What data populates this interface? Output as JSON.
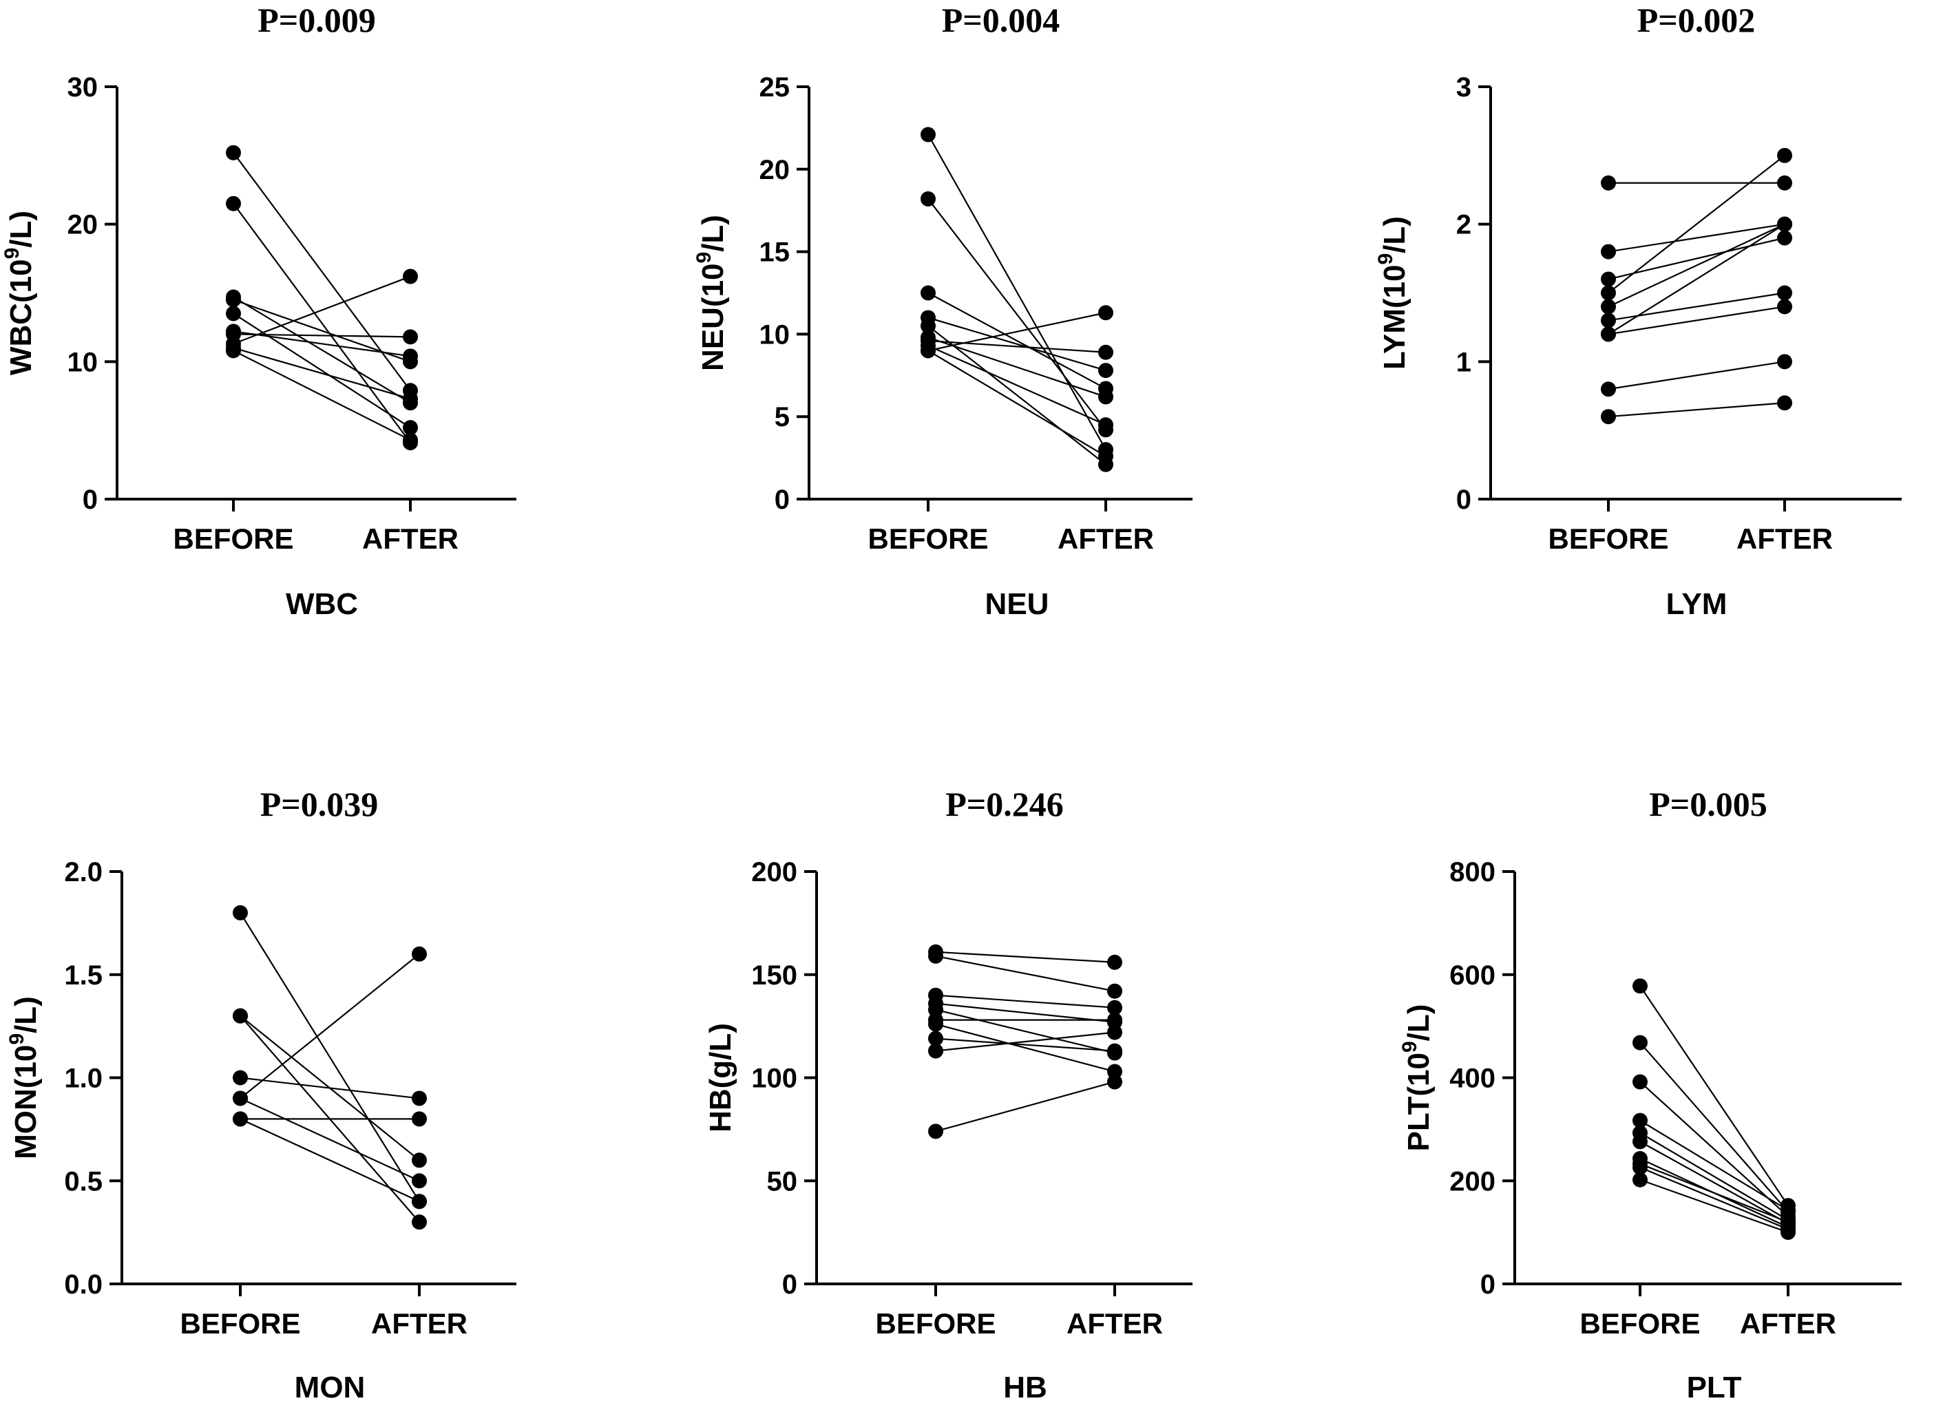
{
  "chart_data": [
    {
      "type": "line",
      "panel": "WBC",
      "title": "P=0.009",
      "ylabel_prefix": "WBC(10",
      "ylabel_sup": "9",
      "ylabel_suffix": "/L)",
      "xlabel": "WBC",
      "categories": [
        "BEFORE",
        "AFTER"
      ],
      "ylim": [
        0,
        30
      ],
      "yticks": [
        0,
        10,
        20,
        30
      ],
      "ytick_labels": [
        "0",
        "10",
        "20",
        "30"
      ],
      "pairs": [
        [
          25.2,
          7.9
        ],
        [
          21.5,
          4.1
        ],
        [
          14.7,
          7.0
        ],
        [
          14.5,
          10.0
        ],
        [
          13.5,
          5.2
        ],
        [
          12.2,
          10.4
        ],
        [
          12.0,
          11.8
        ],
        [
          11.3,
          16.2
        ],
        [
          11.0,
          7.3
        ],
        [
          10.8,
          4.3
        ]
      ]
    },
    {
      "type": "line",
      "panel": "NEU",
      "title": "P=0.004",
      "ylabel_prefix": "NEU(10",
      "ylabel_sup": "9",
      "ylabel_suffix": "/L)",
      "xlabel": "NEU",
      "categories": [
        "BEFORE",
        "AFTER"
      ],
      "ylim": [
        0,
        25
      ],
      "yticks": [
        0,
        5,
        10,
        15,
        20,
        25
      ],
      "ytick_labels": [
        "0",
        "5",
        "10",
        "15",
        "20",
        "25"
      ],
      "pairs": [
        [
          22.1,
          3.0
        ],
        [
          18.2,
          4.2
        ],
        [
          12.5,
          6.7
        ],
        [
          11.0,
          7.8
        ],
        [
          10.5,
          2.1
        ],
        [
          9.8,
          6.2
        ],
        [
          9.6,
          8.9
        ],
        [
          9.3,
          4.5
        ],
        [
          9.0,
          11.3
        ],
        [
          9.0,
          2.6
        ]
      ]
    },
    {
      "type": "line",
      "panel": "LYM",
      "title": "P=0.002",
      "ylabel_prefix": "LYM(10",
      "ylabel_sup": "9",
      "ylabel_suffix": "/L)",
      "xlabel": "LYM",
      "categories": [
        "BEFORE",
        "AFTER"
      ],
      "ylim": [
        0,
        3
      ],
      "yticks": [
        0,
        1,
        2,
        3
      ],
      "ytick_labels": [
        "0",
        "1",
        "2",
        "3"
      ],
      "pairs": [
        [
          2.3,
          2.3
        ],
        [
          1.8,
          2.0
        ],
        [
          1.6,
          1.9
        ],
        [
          1.5,
          2.5
        ],
        [
          1.4,
          2.0
        ],
        [
          1.3,
          1.5
        ],
        [
          1.2,
          1.4
        ],
        [
          1.2,
          2.0
        ],
        [
          0.8,
          1.0
        ],
        [
          0.6,
          0.7
        ]
      ]
    },
    {
      "type": "line",
      "panel": "MON",
      "title": "P=0.039",
      "ylabel_prefix": "MON(10",
      "ylabel_sup": "9",
      "ylabel_suffix": "/L)",
      "xlabel": "MON",
      "categories": [
        "BEFORE",
        "AFTER"
      ],
      "ylim": [
        0,
        2
      ],
      "yticks": [
        0,
        0.5,
        1,
        1.5,
        2
      ],
      "ytick_labels": [
        "0.0",
        "0.5",
        "1.0",
        "1.5",
        "2.0"
      ],
      "pairs": [
        [
          1.8,
          0.4
        ],
        [
          1.3,
          0.6
        ],
        [
          1.3,
          0.3
        ],
        [
          1.0,
          0.9
        ],
        [
          0.9,
          1.6
        ],
        [
          0.9,
          0.5
        ],
        [
          0.8,
          0.8
        ],
        [
          0.8,
          0.4
        ]
      ]
    },
    {
      "type": "line",
      "panel": "HB",
      "title": "P=0.246",
      "ylabel_prefix": "HB(g/L)",
      "ylabel_sup": "",
      "ylabel_suffix": "",
      "xlabel": "HB",
      "categories": [
        "BEFORE",
        "AFTER"
      ],
      "ylim": [
        0,
        200
      ],
      "yticks": [
        0,
        50,
        100,
        150,
        200
      ],
      "ytick_labels": [
        "0",
        "50",
        "100",
        "150",
        "200"
      ],
      "pairs": [
        [
          161,
          156
        ],
        [
          159,
          142
        ],
        [
          140,
          134
        ],
        [
          136,
          127
        ],
        [
          133,
          112
        ],
        [
          128,
          128
        ],
        [
          126,
          103
        ],
        [
          119,
          113
        ],
        [
          113,
          122
        ],
        [
          74,
          98
        ]
      ]
    },
    {
      "type": "line",
      "panel": "PLT",
      "title": "P=0.005",
      "ylabel_prefix": "PLT(10",
      "ylabel_sup": "9",
      "ylabel_suffix": "/L)",
      "xlabel": "PLT",
      "categories": [
        "BEFORE",
        "AFTER"
      ],
      "ylim": [
        0,
        800
      ],
      "yticks": [
        0,
        200,
        400,
        600,
        800
      ],
      "ytick_labels": [
        "0",
        "200",
        "400",
        "600",
        "800"
      ],
      "pairs": [
        [
          578,
          152
        ],
        [
          468,
          140
        ],
        [
          392,
          131
        ],
        [
          317,
          143
        ],
        [
          293,
          124
        ],
        [
          276,
          117
        ],
        [
          243,
          110
        ],
        [
          233,
          120
        ],
        [
          226,
          106
        ],
        [
          202,
          100
        ]
      ]
    }
  ]
}
